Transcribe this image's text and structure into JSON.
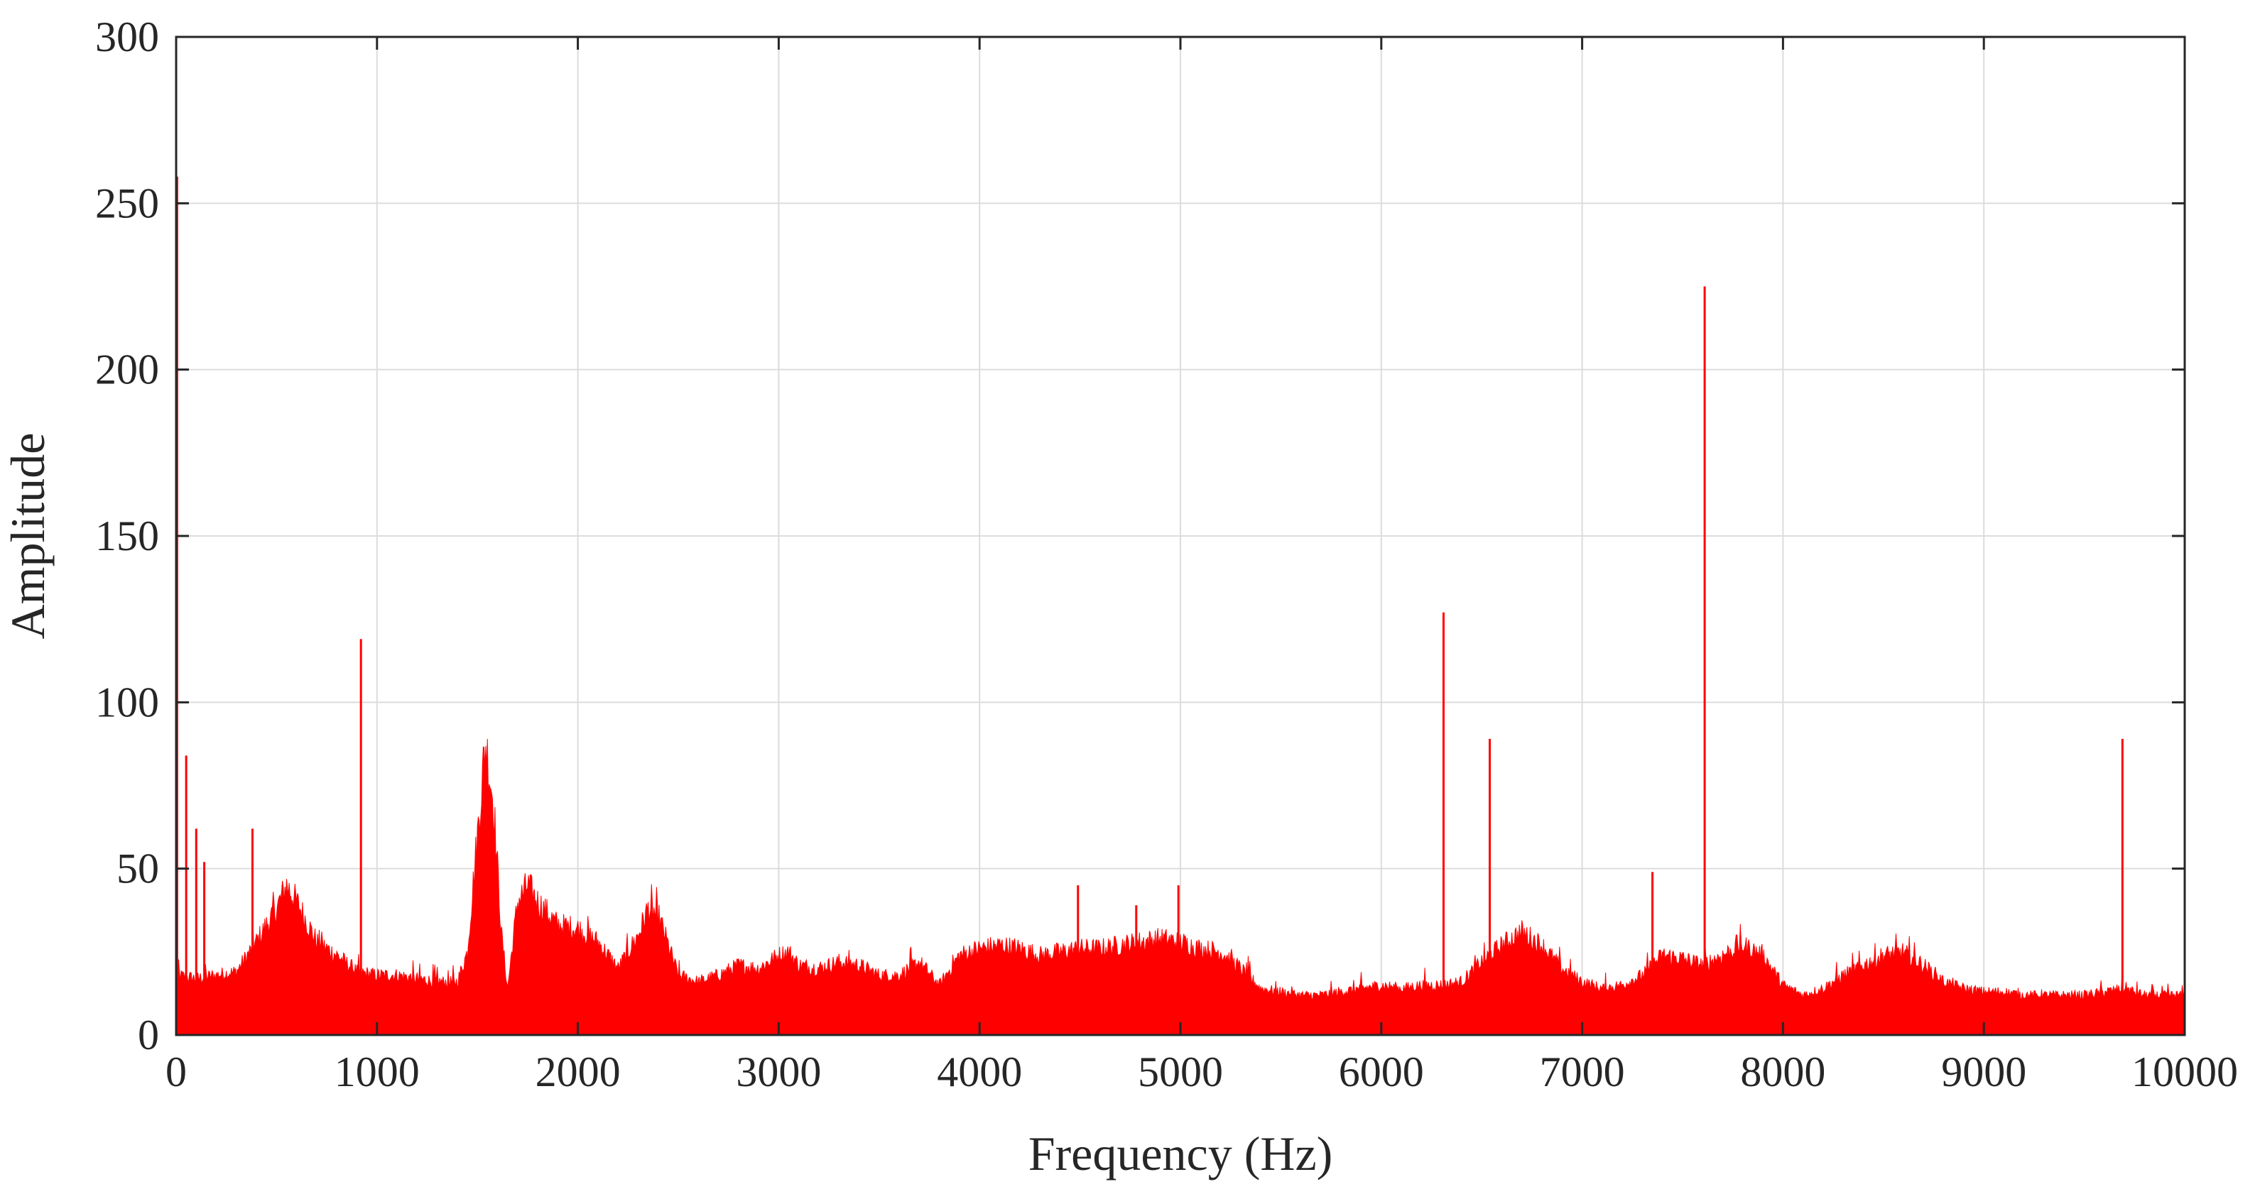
{
  "chart_data": {
    "type": "area",
    "xlabel": "Frequency (Hz)",
    "ylabel": "Amplitude",
    "xlim": [
      0,
      10000
    ],
    "ylim": [
      0,
      300
    ],
    "x_ticks": [
      0,
      1000,
      2000,
      3000,
      4000,
      5000,
      6000,
      7000,
      8000,
      9000,
      10000
    ],
    "y_ticks": [
      0,
      50,
      100,
      150,
      200,
      250,
      300
    ],
    "x_tick_labels": [
      "0",
      "1000",
      "2000",
      "3000",
      "4000",
      "5000",
      "6000",
      "7000",
      "8000",
      "9000",
      "10000"
    ],
    "y_tick_labels": [
      "0",
      "50",
      "100",
      "150",
      "200",
      "250",
      "300"
    ],
    "grid": true,
    "color": "#ff0000",
    "envelope": [
      [
        0,
        18
      ],
      [
        100,
        17
      ],
      [
        200,
        18
      ],
      [
        300,
        19
      ],
      [
        400,
        28
      ],
      [
        500,
        38
      ],
      [
        550,
        45
      ],
      [
        600,
        40
      ],
      [
        700,
        28
      ],
      [
        800,
        24
      ],
      [
        900,
        19
      ],
      [
        1000,
        18
      ],
      [
        1100,
        18
      ],
      [
        1200,
        17
      ],
      [
        1300,
        16
      ],
      [
        1400,
        16
      ],
      [
        1450,
        25
      ],
      [
        1500,
        60
      ],
      [
        1540,
        88
      ],
      [
        1580,
        70
      ],
      [
        1620,
        30
      ],
      [
        1650,
        14
      ],
      [
        1700,
        40
      ],
      [
        1750,
        45
      ],
      [
        1800,
        40
      ],
      [
        1900,
        33
      ],
      [
        2000,
        32
      ],
      [
        2100,
        28
      ],
      [
        2200,
        20
      ],
      [
        2300,
        30
      ],
      [
        2350,
        38
      ],
      [
        2400,
        36
      ],
      [
        2500,
        18
      ],
      [
        2600,
        16
      ],
      [
        2700,
        18
      ],
      [
        2800,
        21
      ],
      [
        2900,
        20
      ],
      [
        3000,
        24
      ],
      [
        3050,
        25
      ],
      [
        3100,
        21
      ],
      [
        3200,
        20
      ],
      [
        3300,
        22
      ],
      [
        3400,
        21
      ],
      [
        3500,
        18
      ],
      [
        3600,
        18
      ],
      [
        3700,
        22
      ],
      [
        3800,
        15
      ],
      [
        3900,
        24
      ],
      [
        4000,
        26
      ],
      [
        4100,
        27
      ],
      [
        4200,
        26
      ],
      [
        4300,
        24
      ],
      [
        4400,
        25
      ],
      [
        4500,
        26
      ],
      [
        4600,
        26
      ],
      [
        4700,
        27
      ],
      [
        4800,
        28
      ],
      [
        4900,
        29
      ],
      [
        5000,
        28
      ],
      [
        5100,
        26
      ],
      [
        5200,
        25
      ],
      [
        5300,
        20
      ],
      [
        5400,
        14
      ],
      [
        5500,
        13
      ],
      [
        5600,
        12
      ],
      [
        5700,
        12
      ],
      [
        5800,
        13
      ],
      [
        5900,
        14
      ],
      [
        6000,
        15
      ],
      [
        6100,
        14
      ],
      [
        6200,
        15
      ],
      [
        6300,
        15
      ],
      [
        6400,
        16
      ],
      [
        6500,
        22
      ],
      [
        6600,
        27
      ],
      [
        6700,
        31
      ],
      [
        6800,
        27
      ],
      [
        6900,
        20
      ],
      [
        7000,
        16
      ],
      [
        7100,
        14
      ],
      [
        7200,
        15
      ],
      [
        7300,
        18
      ],
      [
        7400,
        24
      ],
      [
        7500,
        23
      ],
      [
        7600,
        21
      ],
      [
        7700,
        24
      ],
      [
        7800,
        27
      ],
      [
        7900,
        24
      ],
      [
        8000,
        15
      ],
      [
        8100,
        12
      ],
      [
        8200,
        14
      ],
      [
        8300,
        18
      ],
      [
        8400,
        21
      ],
      [
        8500,
        24
      ],
      [
        8600,
        25
      ],
      [
        8700,
        21
      ],
      [
        8800,
        16
      ],
      [
        8900,
        14
      ],
      [
        9000,
        13
      ],
      [
        9100,
        13
      ],
      [
        9200,
        12
      ],
      [
        9300,
        12
      ],
      [
        9400,
        12
      ],
      [
        9500,
        12
      ],
      [
        9600,
        13
      ],
      [
        9700,
        14
      ],
      [
        9800,
        12
      ],
      [
        9900,
        12
      ],
      [
        10000,
        12
      ]
    ],
    "peaks": [
      [
        5,
        258
      ],
      [
        50,
        84
      ],
      [
        100,
        62
      ],
      [
        140,
        52
      ],
      [
        380,
        62
      ],
      [
        920,
        119
      ],
      [
        4490,
        45
      ],
      [
        4780,
        39
      ],
      [
        4990,
        45
      ],
      [
        6310,
        127
      ],
      [
        6540,
        89
      ],
      [
        7350,
        49
      ],
      [
        7610,
        225
      ],
      [
        9690,
        89
      ]
    ]
  }
}
